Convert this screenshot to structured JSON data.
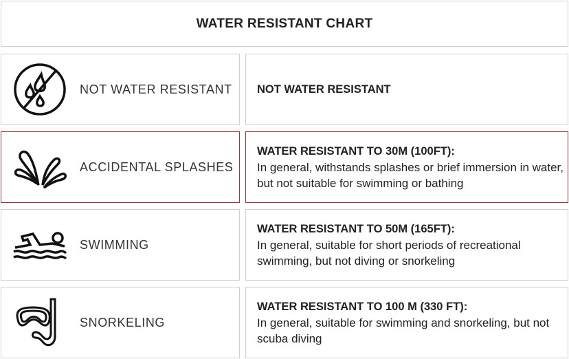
{
  "title": "WATER RESISTANT CHART",
  "rows": [
    {
      "icon": "no-water-drops-icon",
      "label": "NOT WATER RESISTANT",
      "heading": "NOT WATER RESISTANT",
      "text": "",
      "highlighted": false
    },
    {
      "icon": "splash-icon",
      "label": "ACCIDENTAL SPLASHES",
      "heading": "WATER RESISTANT TO 30M (100FT):",
      "text": "In general, withstands splashes or brief immersion in water, but not suitable for swimming or bathing",
      "highlighted": true
    },
    {
      "icon": "swimmer-icon",
      "label": "SWIMMING",
      "heading": "WATER RESISTANT TO 50M (165FT):",
      "text": "In general, suitable for short periods of recreational swimming, but not diving or snorkeling",
      "highlighted": false
    },
    {
      "icon": "snorkel-mask-icon",
      "label": "SNORKELING",
      "heading": "WATER RESISTANT TO 100 M (330 FT):",
      "text": "In general, suitable for swimming and snorkeling, but not scuba diving",
      "highlighted": false
    }
  ],
  "colors": {
    "highlight_border": "#a3343a",
    "border": "#cfcfcf"
  }
}
